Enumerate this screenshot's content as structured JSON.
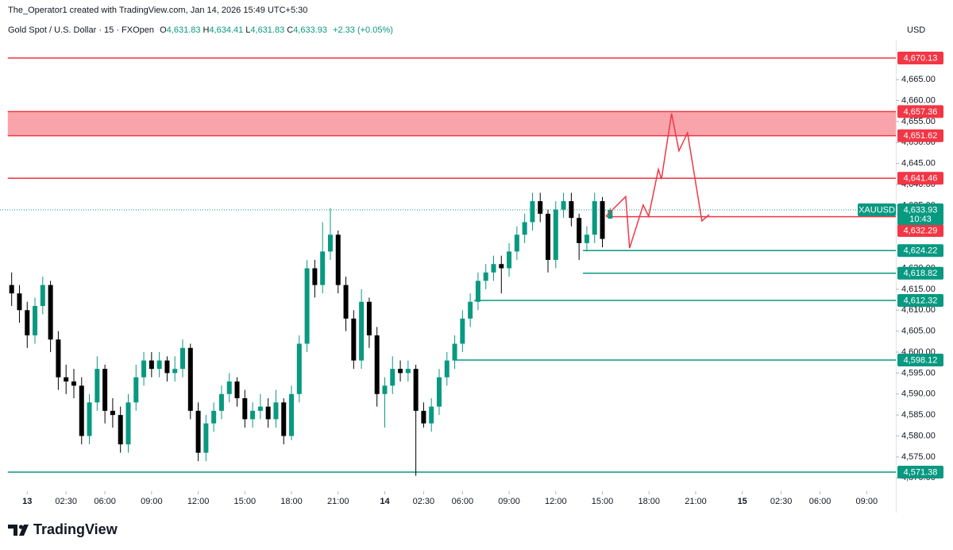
{
  "header": {
    "credit": "The_Operator1 created with TradingView.com, Jan 14, 2026 15:49 UTC+5:30",
    "symbol": "Gold Spot / U.S. Dollar · 15 · FXOpen",
    "ohlc": [
      {
        "key": "O",
        "value": "4,631.83"
      },
      {
        "key": "H",
        "value": "4,634.41"
      },
      {
        "key": "L",
        "value": "4,631.83"
      },
      {
        "key": "C",
        "value": "4,633.93"
      }
    ],
    "change": "+2.33 (+0.05%)",
    "currency": "USD"
  },
  "footer": {
    "brand": "TradingView"
  },
  "chart_data": {
    "type": "candlestick",
    "up_color": "#089981",
    "down_color": "#000000",
    "candles": {
      "x": [
        -4,
        -2,
        0,
        2,
        4,
        6,
        8,
        10,
        12,
        14,
        16,
        18,
        20,
        22,
        24,
        26,
        28,
        30,
        32,
        34,
        36,
        38,
        40,
        42,
        44,
        46,
        48,
        50,
        52,
        54,
        56,
        58,
        60,
        62,
        64,
        66,
        68,
        70,
        72,
        74,
        76,
        78,
        80,
        82,
        84,
        86,
        88,
        90,
        92,
        94,
        96,
        98,
        100,
        102,
        104,
        106,
        108,
        110,
        112,
        114,
        116,
        118,
        120,
        122,
        124,
        126,
        128,
        130,
        132,
        134,
        136,
        138,
        140,
        142,
        144,
        146,
        148,
        150
      ],
      "open": [
        4616,
        4614,
        4610,
        4604,
        4611,
        4616,
        4603,
        4594,
        4593,
        4592,
        4580,
        4588,
        4596,
        4586,
        4585,
        4578,
        4588,
        4594,
        4598,
        4596,
        4598,
        4595,
        4596,
        4601,
        4586,
        4576,
        4583,
        4586,
        4590,
        4593,
        4589,
        4584,
        4586,
        4587,
        4584,
        4588,
        4580,
        4590,
        4602,
        4620,
        4616,
        4624,
        4628,
        4616,
        4608,
        4598,
        4612,
        4604,
        4590,
        4592,
        4596,
        4595,
        4596,
        4586,
        4583,
        4587,
        4594,
        4598,
        4602,
        4608,
        4612,
        4617,
        4619,
        4621,
        4620,
        4624,
        4628,
        4631,
        4636,
        4633,
        4622,
        4634,
        4636,
        4632,
        4626,
        4628,
        4636,
        4631.83
      ],
      "high": [
        4619,
        4616,
        4612,
        4613,
        4618,
        4617,
        4605,
        4597,
        4596,
        4594,
        4590,
        4599,
        4597,
        4589,
        4587,
        4590,
        4597,
        4600,
        4600,
        4600,
        4599,
        4599,
        4603,
        4602,
        4588,
        4585,
        4588,
        4592,
        4595,
        4594,
        4591,
        4588,
        4590,
        4589,
        4591,
        4589,
        4592,
        4604,
        4622,
        4622,
        4631,
        4634.3,
        4629,
        4618,
        4610,
        4615,
        4613,
        4606,
        4594,
        4599,
        4598,
        4598,
        4597,
        4588,
        4589,
        4596,
        4600,
        4604,
        4610,
        4614,
        4619,
        4621,
        4623,
        4623,
        4626,
        4630,
        4633,
        4638,
        4638,
        4634,
        4636,
        4638,
        4638,
        4633,
        4630,
        4638,
        4637,
        4634.41
      ],
      "low": [
        4611,
        4607,
        4601,
        4602,
        4609,
        4600,
        4591,
        4590,
        4589,
        4578,
        4578,
        4586,
        4583,
        4582,
        4576,
        4576,
        4586,
        4592,
        4594,
        4594,
        4593,
        4593,
        4594,
        4584,
        4574,
        4574,
        4581,
        4584,
        4588,
        4587,
        4582,
        4582,
        4584,
        4582,
        4582,
        4578,
        4579,
        4588,
        4600,
        4613,
        4614,
        4622,
        4614,
        4605,
        4596,
        4596,
        4601,
        4587,
        4582,
        4590,
        4593,
        4593,
        4570.5,
        4582,
        4581,
        4585,
        4592,
        4596,
        4600,
        4606,
        4610,
        4615,
        4617,
        4614,
        4618,
        4622,
        4626,
        4629,
        4631,
        4619,
        4620,
        4632,
        4630,
        4622,
        4624,
        4626,
        4625,
        4631.83
      ],
      "close": [
        4614,
        4610,
        4604,
        4611,
        4616,
        4603,
        4594,
        4593,
        4592,
        4580,
        4588,
        4596,
        4586,
        4585,
        4578,
        4588,
        4594,
        4598,
        4596,
        4598,
        4595,
        4596,
        4601,
        4586,
        4576,
        4583,
        4586,
        4590,
        4593,
        4589,
        4584,
        4586,
        4587,
        4584,
        4588,
        4580,
        4590,
        4602,
        4620,
        4616,
        4624,
        4628,
        4616,
        4608,
        4598,
        4612,
        4604,
        4590,
        4592,
        4596,
        4595,
        4596,
        4586,
        4583,
        4587,
        4594,
        4598,
        4602,
        4608,
        4612,
        4617,
        4619,
        4621,
        4620,
        4624,
        4628,
        4631,
        4636,
        4633,
        4622,
        4634,
        4636,
        4632,
        4626,
        4628,
        4636,
        4627,
        4633.93
      ]
    },
    "xlim": [
      -7,
      223.5
    ],
    "xticks": [
      {
        "value": 0,
        "label": "13"
      },
      {
        "value": 10,
        "label": "02:30"
      },
      {
        "value": 20,
        "label": "06:00"
      },
      {
        "value": 32,
        "label": "09:00"
      },
      {
        "value": 44,
        "label": "12:00"
      },
      {
        "value": 56,
        "label": "15:00"
      },
      {
        "value": 68,
        "label": "18:00"
      },
      {
        "value": 80,
        "label": "21:00"
      },
      {
        "value": 92,
        "label": "14"
      },
      {
        "value": 102,
        "label": "02:30"
      },
      {
        "value": 112,
        "label": "06:00"
      },
      {
        "value": 124,
        "label": "09:00"
      },
      {
        "value": 136,
        "label": "12:00"
      },
      {
        "value": 148,
        "label": "15:00"
      },
      {
        "value": 160,
        "label": "18:00"
      },
      {
        "value": 172,
        "label": "21:00"
      },
      {
        "value": 184,
        "label": "15"
      },
      {
        "value": 194,
        "label": "02:30"
      },
      {
        "value": 204,
        "label": "06:00"
      },
      {
        "value": 216,
        "label": "09:00"
      }
    ],
    "ylim": [
      4567.4,
      4674.5
    ],
    "yticks": [
      {
        "value": 4570,
        "label": "4,570.00"
      },
      {
        "value": 4575,
        "label": "4,575.00"
      },
      {
        "value": 4580,
        "label": "4,580.00"
      },
      {
        "value": 4585,
        "label": "4,585.00"
      },
      {
        "value": 4590,
        "label": "4,590.00"
      },
      {
        "value": 4595,
        "label": "4,595.00"
      },
      {
        "value": 4600,
        "label": "4,600.00"
      },
      {
        "value": 4605,
        "label": "4,605.00"
      },
      {
        "value": 4610,
        "label": "4,610.00"
      },
      {
        "value": 4615,
        "label": "4,615.00"
      },
      {
        "value": 4620,
        "label": "4,620.00"
      },
      {
        "value": 4635,
        "label": "4,635.00"
      },
      {
        "value": 4640,
        "label": "4,640.00"
      },
      {
        "value": 4645,
        "label": "4,645.00"
      },
      {
        "value": 4650,
        "label": "4,650.00"
      },
      {
        "value": 4655,
        "label": "4,655.00"
      },
      {
        "value": 4660,
        "label": "4,660.00"
      },
      {
        "value": 4665,
        "label": "4,665.00"
      }
    ],
    "grid": false,
    "zone": {
      "low": 4651.62,
      "high": 4657.36,
      "low_label": "4,651.62",
      "high_label": "4,657.36",
      "color": "#f23645",
      "x_start": -5
    },
    "levels": [
      {
        "value": 4670.13,
        "label": "4,670.13",
        "color": "#f23645",
        "x_start": -5
      },
      {
        "value": 4641.46,
        "label": "4,641.46",
        "color": "#f23645",
        "x_start": -5
      },
      {
        "value": 4632.29,
        "label": "4,632.29",
        "color": "#f23645",
        "x_start": 149
      },
      {
        "value": 4624.22,
        "label": "4,624.22",
        "color": "#089981",
        "x_start": 143
      },
      {
        "value": 4618.82,
        "label": "4,618.82",
        "color": "#089981",
        "x_start": 143
      },
      {
        "value": 4612.32,
        "label": "4,612.32",
        "color": "#089981",
        "x_start": 115
      },
      {
        "value": 4598.12,
        "label": "4,598.12",
        "color": "#089981",
        "x_start": 110
      },
      {
        "value": 4571.38,
        "label": "4,571.38",
        "color": "#089981",
        "x_start": -5
      }
    ],
    "last_price": {
      "name": "XAUUSD",
      "value": 4633.93,
      "label": "4,633.93",
      "countdown": "10:43",
      "color": "#089981"
    },
    "projection": {
      "color": "#f23645",
      "x": [
        148.9,
        154,
        155,
        158.5,
        159.9,
        162.4,
        163.2,
        165.8,
        167.7,
        169.9,
        173.6,
        175.5
      ],
      "y": [
        4632.4,
        4637.1,
        4624.8,
        4635.1,
        4632.4,
        4643.6,
        4641.3,
        4656.9,
        4648,
        4652.3,
        4631.3,
        4632.8
      ]
    }
  }
}
